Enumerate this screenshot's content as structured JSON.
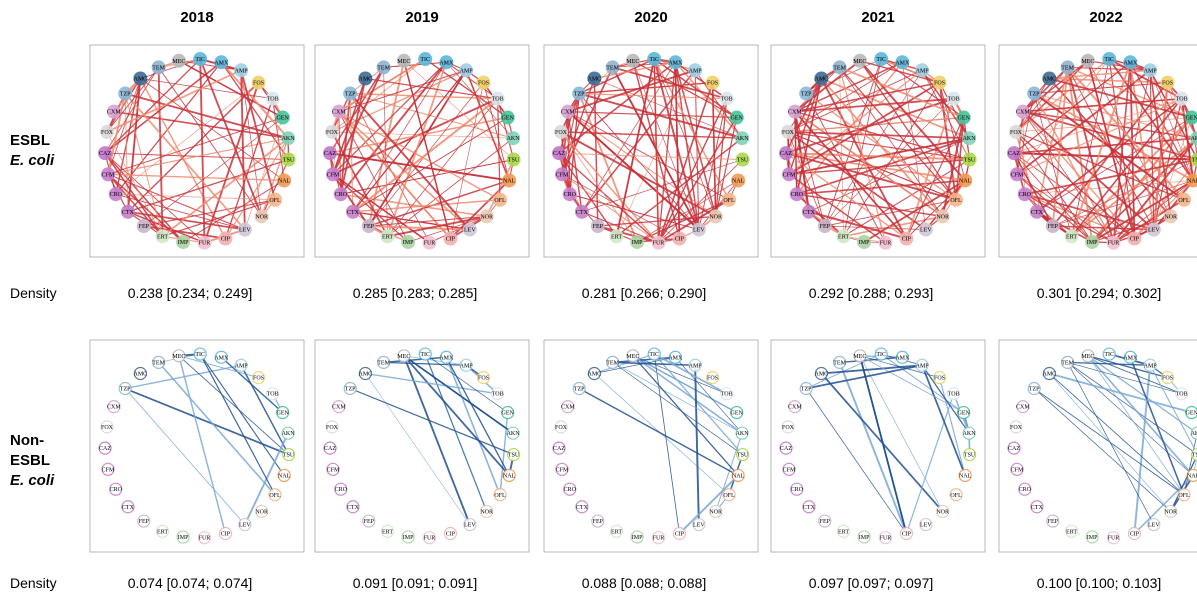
{
  "years": [
    "2018",
    "2019",
    "2020",
    "2021",
    "2022"
  ],
  "rows": [
    {
      "label_lines": [
        "ESBL",
        "E. coli"
      ],
      "density_label": "Density",
      "densities": [
        "0.238 [0.234; 0.249]",
        "0.285 [0.283; 0.285]",
        "0.281 [0.266; 0.290]",
        "0.292 [0.288; 0.293]",
        "0.301 [0.294; 0.302]"
      ]
    },
    {
      "label_lines": [
        "Non-",
        "ESBL",
        "E. coli"
      ],
      "density_label": "Density",
      "densities": [
        "0.074 [0.074; 0.074]",
        "0.091 [0.091; 0.091]",
        "0.088 [0.088; 0.088]",
        "0.097 [0.097; 0.097]",
        "0.100 [0.100; 0.103]"
      ]
    }
  ],
  "nodes": [
    "TIC",
    "AMX",
    "AMP",
    "FOS",
    "TOB",
    "GEN",
    "AKN",
    "TSU",
    "NAL",
    "OFL",
    "NOR",
    "LEV",
    "CIP",
    "FUR",
    "IMP",
    "ERT",
    "FEP",
    "CTX",
    "CRO",
    "CFM",
    "CAZ",
    "FOX",
    "CXM",
    "TZP",
    "AMC",
    "TEM",
    "MEC"
  ]
}
